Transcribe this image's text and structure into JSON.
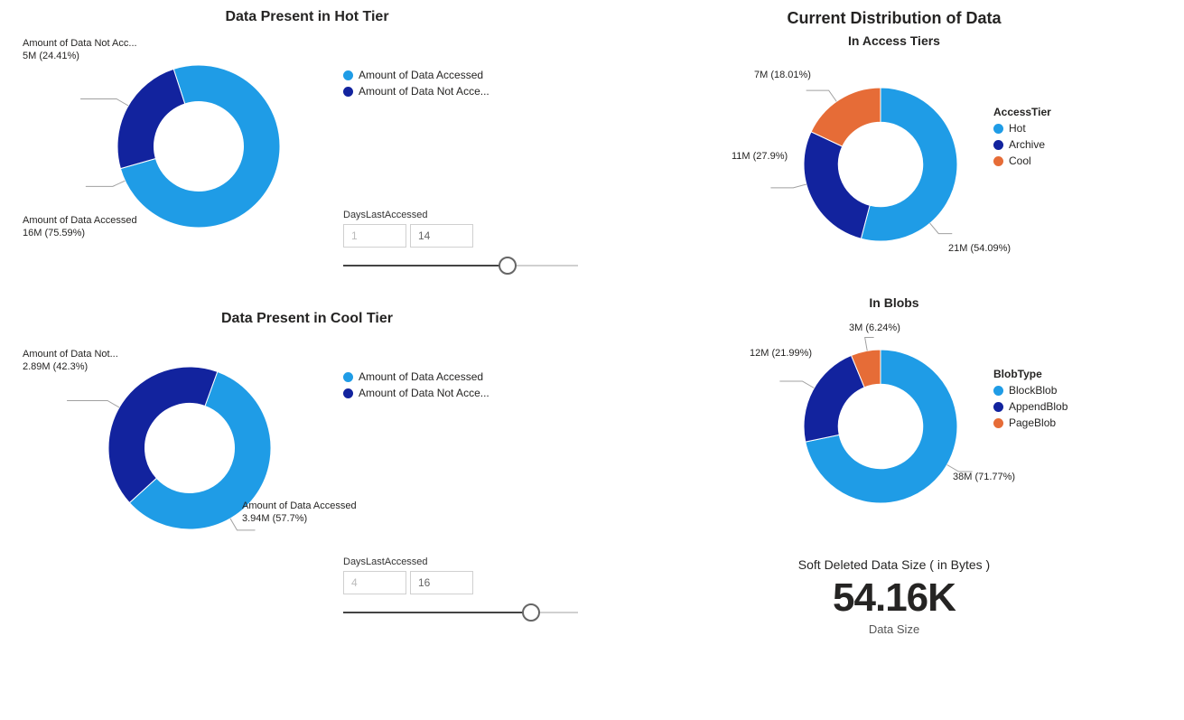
{
  "palette": {
    "accessed": "#1f9ce6",
    "not_accessed": "#12239e",
    "hot": "#1f9ce6",
    "archive": "#12239e",
    "cool": "#e66c37",
    "blockblob": "#1f9ce6",
    "appendblob": "#12239e",
    "pageblob": "#e66c37",
    "grid": "#d0d0d0",
    "text": "#252423",
    "white": "#ffffff"
  },
  "left": {
    "hot": {
      "title": "Data Present in Hot Tier",
      "type": "donut",
      "inner_radius": 0.55,
      "slices": [
        {
          "key": "accessed",
          "label_short": "Amount of Data Accessed",
          "callout": "Amount of Data Accessed",
          "value_label": "16M (75.59%)",
          "value": 75.59,
          "color_key": "accessed"
        },
        {
          "key": "not_accessed",
          "label_short": "Amount of Data Not Acce...",
          "callout": "Amount of Data Not Acc...",
          "value_label": "5M (24.41%)",
          "value": 24.41,
          "color_key": "not_accessed"
        }
      ],
      "legend": [
        {
          "label": "Amount of Data Accessed",
          "color_key": "accessed"
        },
        {
          "label": "Amount of Data Not Acce...",
          "color_key": "not_accessed"
        }
      ],
      "slider": {
        "label": "DaysLastAccessed",
        "min_display": "1",
        "max_display": "14",
        "min": 1,
        "max": 20,
        "current": 14,
        "fill_pct": 70
      }
    },
    "cool": {
      "title": "Data Present in Cool Tier",
      "type": "donut",
      "inner_radius": 0.55,
      "slices": [
        {
          "key": "accessed",
          "label_short": "Amount of Data Accessed",
          "callout": "Amount of Data Accessed",
          "value_label": "3.94M (57.7%)",
          "value": 57.7,
          "color_key": "accessed"
        },
        {
          "key": "not_accessed",
          "label_short": "Amount of Data Not Acce...",
          "callout": "Amount of Data Not...",
          "value_label": "2.89M (42.3%)",
          "value": 42.3,
          "color_key": "not_accessed"
        }
      ],
      "legend": [
        {
          "label": "Amount of Data Accessed",
          "color_key": "accessed"
        },
        {
          "label": "Amount of Data Not Acce...",
          "color_key": "not_accessed"
        }
      ],
      "slider": {
        "label": "DaysLastAccessed",
        "min_display": "4",
        "max_display": "16",
        "min": 1,
        "max": 20,
        "current": 16,
        "fill_pct": 80
      }
    }
  },
  "right": {
    "section_title": "Current Distribution of Data",
    "access": {
      "title": "In Access Tiers",
      "type": "donut",
      "inner_radius": 0.55,
      "legend_title": "AccessTier",
      "slices": [
        {
          "key": "hot",
          "callout": "21M (54.09%)",
          "value": 54.09,
          "color_key": "hot"
        },
        {
          "key": "archive",
          "callout": "11M (27.9%)",
          "value": 27.9,
          "color_key": "archive"
        },
        {
          "key": "cool",
          "callout": "7M (18.01%)",
          "value": 18.01,
          "color_key": "cool"
        }
      ],
      "legend": [
        {
          "label": "Hot",
          "color_key": "hot"
        },
        {
          "label": "Archive",
          "color_key": "archive"
        },
        {
          "label": "Cool",
          "color_key": "cool"
        }
      ]
    },
    "blobs": {
      "title": "In Blobs",
      "type": "donut",
      "inner_radius": 0.55,
      "legend_title": "BlobType",
      "slices": [
        {
          "key": "block",
          "callout": "38M (71.77%)",
          "value": 71.77,
          "color_key": "blockblob"
        },
        {
          "key": "append",
          "callout": "12M (21.99%)",
          "value": 21.99,
          "color_key": "appendblob"
        },
        {
          "key": "page",
          "callout": "3M (6.24%)",
          "value": 6.24,
          "color_key": "pageblob"
        }
      ],
      "legend": [
        {
          "label": "BlockBlob",
          "color_key": "blockblob"
        },
        {
          "label": "AppendBlob",
          "color_key": "appendblob"
        },
        {
          "label": "PageBlob",
          "color_key": "pageblob"
        }
      ]
    },
    "kpi": {
      "title": "Soft Deleted Data Size ( in Bytes )",
      "value": "54.16K",
      "subtitle": "Data Size"
    }
  }
}
